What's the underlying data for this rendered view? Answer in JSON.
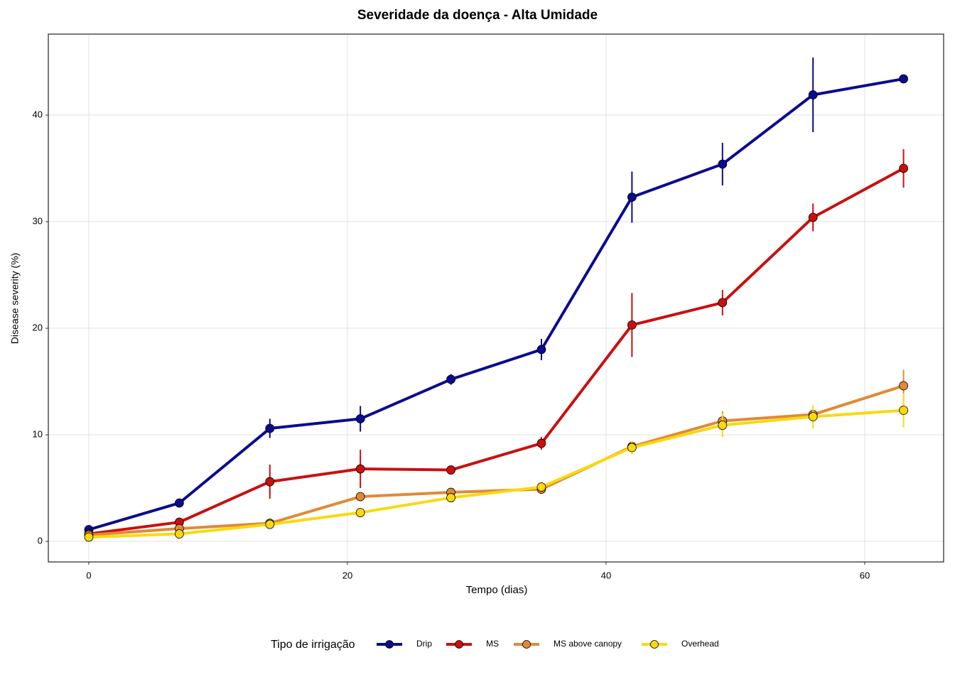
{
  "chart_data": {
    "type": "line",
    "title": "Severidade da doença - Alta Umidade",
    "x_label": "Tempo (dias)",
    "y_label": "Disease severity (%)",
    "legend_title": "Tipo de irrigação",
    "legend_position": "bottom",
    "grid": true,
    "x": [
      0,
      7,
      14,
      21,
      28,
      35,
      42,
      49,
      56,
      63
    ],
    "xlim": [
      -3.13,
      66.1
    ],
    "xticks": [
      0,
      20,
      40,
      60
    ],
    "ylim": [
      -1.93,
      47.6
    ],
    "yticks": [
      0,
      10,
      20,
      30,
      40
    ],
    "series": [
      {
        "name": "Drip",
        "color": "#0b0b8f",
        "values": [
          1.1,
          3.6,
          10.6,
          11.5,
          15.2,
          18.0,
          32.3,
          35.4,
          41.9,
          43.4
        ],
        "errors": [
          0.2,
          0.3,
          0.9,
          1.2,
          0.5,
          1.0,
          2.4,
          2.0,
          3.5,
          0.2
        ]
      },
      {
        "name": "MS",
        "color": "#c8100f",
        "values": [
          0.7,
          1.8,
          5.6,
          6.8,
          6.7,
          9.2,
          20.3,
          22.4,
          30.4,
          35.0
        ],
        "errors": [
          0.1,
          0.3,
          1.6,
          1.8,
          0.2,
          0.6,
          3.0,
          1.2,
          1.3,
          1.8
        ]
      },
      {
        "name": "MS above canopy",
        "color": "#e08a35",
        "values": [
          0.6,
          1.2,
          1.7,
          4.2,
          4.6,
          4.9,
          8.9,
          11.3,
          11.9,
          14.6
        ],
        "errors": [
          0.1,
          0.2,
          0.3,
          0.3,
          0.3,
          0.3,
          0.5,
          0.9,
          0.5,
          1.5
        ]
      },
      {
        "name": "Overhead",
        "color": "#f9d90f",
        "values": [
          0.4,
          0.7,
          1.6,
          2.7,
          4.1,
          5.1,
          8.8,
          10.9,
          11.7,
          12.3
        ],
        "errors": [
          0.1,
          0.1,
          0.2,
          0.3,
          0.3,
          0.3,
          0.6,
          1.1,
          1.1,
          1.6
        ]
      }
    ]
  }
}
